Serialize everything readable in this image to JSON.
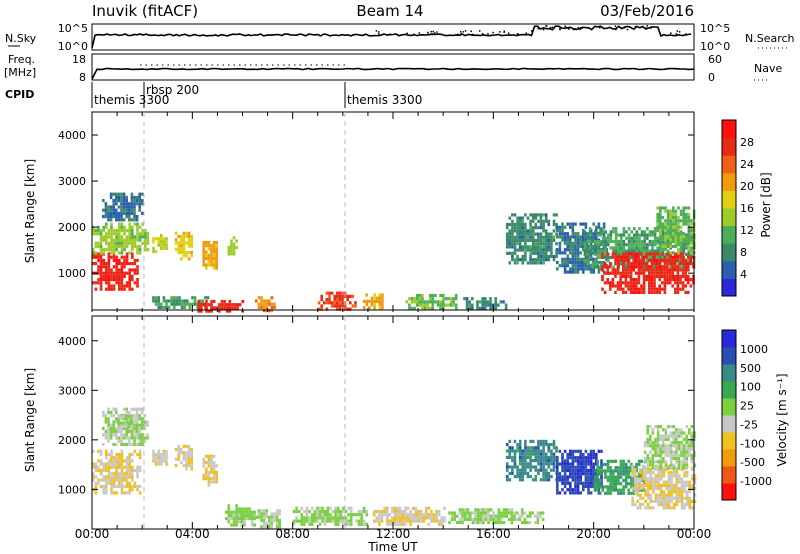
{
  "header": {
    "station": "Inuvik (fitACF)",
    "beam": "Beam 14",
    "date": "03/Feb/2016"
  },
  "summary_panels": {
    "nsky": {
      "left_label": "N.Sky",
      "left_ticks": [
        "10^5",
        "10^0"
      ],
      "right_ticks": [
        "10^5",
        "10^0"
      ],
      "right_label": "N.Search"
    },
    "freq": {
      "left_label_1": "Freq.",
      "left_label_2": "[MHz]",
      "left_ticks": [
        "18",
        "8"
      ],
      "right_ticks": [
        "60",
        "0"
      ],
      "right_label": "Nave"
    },
    "cpid": {
      "label": "CPID",
      "modes": [
        {
          "label": "themis 3300",
          "start_hour": 0.05
        },
        {
          "label": "rbsp 200",
          "start_hour": 1.7
        },
        {
          "label": "themis 3300",
          "start_hour": 10.05
        }
      ]
    }
  },
  "time_axis": {
    "title": "Time UT",
    "tick_labels": [
      "00:00",
      "04:00",
      "08:00",
      "12:00",
      "16:00",
      "20:00",
      "00:00"
    ]
  },
  "chart_data": [
    {
      "type": "heatmap",
      "quantity": "power",
      "ylabel": "Slant Range [km]",
      "xlim_hours": [
        0,
        24
      ],
      "ylim_km": [
        200,
        4500
      ],
      "yticks": [
        1000,
        2000,
        3000,
        4000
      ],
      "colorbar": {
        "label": "Power [dB]",
        "ticks": [
          "28",
          "24",
          "20",
          "16",
          "12",
          "8",
          "4"
        ],
        "range": [
          0,
          32
        ],
        "colors": [
          "#2a28d8",
          "#2a5fb0",
          "#3a8a6a",
          "#4cae58",
          "#9ecb2c",
          "#e0d010",
          "#f09a10",
          "#f06018",
          "#e82a18",
          "#ff1010"
        ]
      },
      "regions": [
        {
          "t": [
            0,
            1.8
          ],
          "r": [
            650,
            1450
          ],
          "value": 28
        },
        {
          "t": [
            0,
            2.2
          ],
          "r": [
            1450,
            2100
          ],
          "value": 14
        },
        {
          "t": [
            0.4,
            2.0
          ],
          "r": [
            2150,
            2750
          ],
          "value": 6
        },
        {
          "t": [
            2.4,
            3.0
          ],
          "r": [
            1500,
            1850
          ],
          "value": 16
        },
        {
          "t": [
            3.3,
            4.0
          ],
          "r": [
            1300,
            1900
          ],
          "value": 18
        },
        {
          "t": [
            4.4,
            5.0
          ],
          "r": [
            1100,
            1700
          ],
          "value": 20
        },
        {
          "t": [
            5.4,
            5.8
          ],
          "r": [
            1400,
            1800
          ],
          "value": 14
        },
        {
          "t": [
            2.4,
            4.6
          ],
          "r": [
            280,
            500
          ],
          "value": 10
        },
        {
          "t": [
            4.2,
            6.0
          ],
          "r": [
            200,
            420
          ],
          "value": 28
        },
        {
          "t": [
            6.5,
            7.3
          ],
          "r": [
            200,
            500
          ],
          "value": 22
        },
        {
          "t": [
            9.0,
            10.5
          ],
          "r": [
            240,
            600
          ],
          "value": 26
        },
        {
          "t": [
            10.8,
            11.6
          ],
          "r": [
            250,
            560
          ],
          "value": 20
        },
        {
          "t": [
            12.5,
            14.5
          ],
          "r": [
            250,
            550
          ],
          "value": 12
        },
        {
          "t": [
            14.8,
            16.5
          ],
          "r": [
            250,
            480
          ],
          "value": 8
        },
        {
          "t": [
            16.5,
            18.5
          ],
          "r": [
            1200,
            2300
          ],
          "value": 8
        },
        {
          "t": [
            18.5,
            20.5
          ],
          "r": [
            1000,
            2100
          ],
          "value": 6
        },
        {
          "t": [
            19.6,
            24
          ],
          "r": [
            1100,
            2000
          ],
          "value": 10
        },
        {
          "t": [
            20.3,
            24
          ],
          "r": [
            600,
            1450
          ],
          "value": 28
        },
        {
          "t": [
            22.5,
            24
          ],
          "r": [
            1450,
            2450
          ],
          "value": 12
        }
      ]
    },
    {
      "type": "heatmap",
      "quantity": "velocity",
      "ylabel": "Slant Range [km]",
      "xlim_hours": [
        0,
        24
      ],
      "ylim_km": [
        200,
        4500
      ],
      "yticks": [
        1000,
        2000,
        3000,
        4000
      ],
      "colorbar": {
        "label": "Velocity [m s⁻¹]",
        "unit_superscript": "-1",
        "ticks": [
          "1000",
          "500",
          "100",
          "25",
          "-25",
          "-100",
          "-500",
          "-1000"
        ],
        "range": [
          -1200,
          1200
        ],
        "colors": [
          "#ff1010",
          "#f05818",
          "#f09a10",
          "#f0c020",
          "#c8c8c8",
          "#7ad040",
          "#3aa850",
          "#3a8a8a",
          "#2a4fb0",
          "#2a28d8"
        ]
      },
      "regions": [
        {
          "t": [
            0,
            1.9
          ],
          "r": [
            900,
            1800
          ],
          "value": -220
        },
        {
          "t": [
            0.4,
            2.2
          ],
          "r": [
            1900,
            2650
          ],
          "value": 0
        },
        {
          "t": [
            1.0,
            1.6
          ],
          "r": [
            2250,
            2500
          ],
          "value": 0
        },
        {
          "t": [
            2.4,
            3.0
          ],
          "r": [
            1500,
            1800
          ],
          "value": -150
        },
        {
          "t": [
            3.3,
            4.0
          ],
          "r": [
            1400,
            1900
          ],
          "value": -200
        },
        {
          "t": [
            4.4,
            5.0
          ],
          "r": [
            1100,
            1700
          ],
          "value": -250
        },
        {
          "t": [
            5.3,
            6.5
          ],
          "r": [
            300,
            700
          ],
          "value": 60
        },
        {
          "t": [
            6.5,
            7.5
          ],
          "r": [
            250,
            600
          ],
          "value": 0
        },
        {
          "t": [
            8.0,
            11.0
          ],
          "r": [
            300,
            650
          ],
          "value": 60
        },
        {
          "t": [
            11.2,
            14.0
          ],
          "r": [
            300,
            650
          ],
          "value": -200
        },
        {
          "t": [
            14.2,
            18.0
          ],
          "r": [
            300,
            620
          ],
          "value": 60
        },
        {
          "t": [
            16.5,
            18.5
          ],
          "r": [
            1200,
            2000
          ],
          "value": 600
        },
        {
          "t": [
            18.5,
            20.3
          ],
          "r": [
            900,
            1800
          ],
          "value": 900
        },
        {
          "t": [
            20.0,
            22.0
          ],
          "r": [
            900,
            1600
          ],
          "value": 400
        },
        {
          "t": [
            21.5,
            24
          ],
          "r": [
            600,
            1500
          ],
          "value": -200
        },
        {
          "t": [
            22.0,
            24
          ],
          "r": [
            1400,
            2300
          ],
          "value": 0
        }
      ]
    }
  ]
}
